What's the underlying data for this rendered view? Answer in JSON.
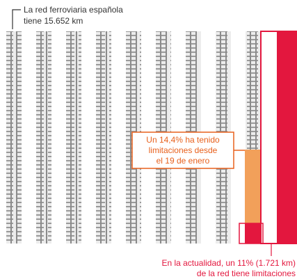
{
  "header": {
    "lines": [
      "La red ferroviaria española",
      "tiene 15.652 km"
    ]
  },
  "callout": {
    "lines": [
      "Un 14,4% ha tenido",
      "limitaciones desde",
      "el 19 de enero"
    ]
  },
  "footer": {
    "lines": [
      "En la actualidad, un 11% (1.721 km)",
      "de la red tiene limitaciones"
    ]
  }
}
